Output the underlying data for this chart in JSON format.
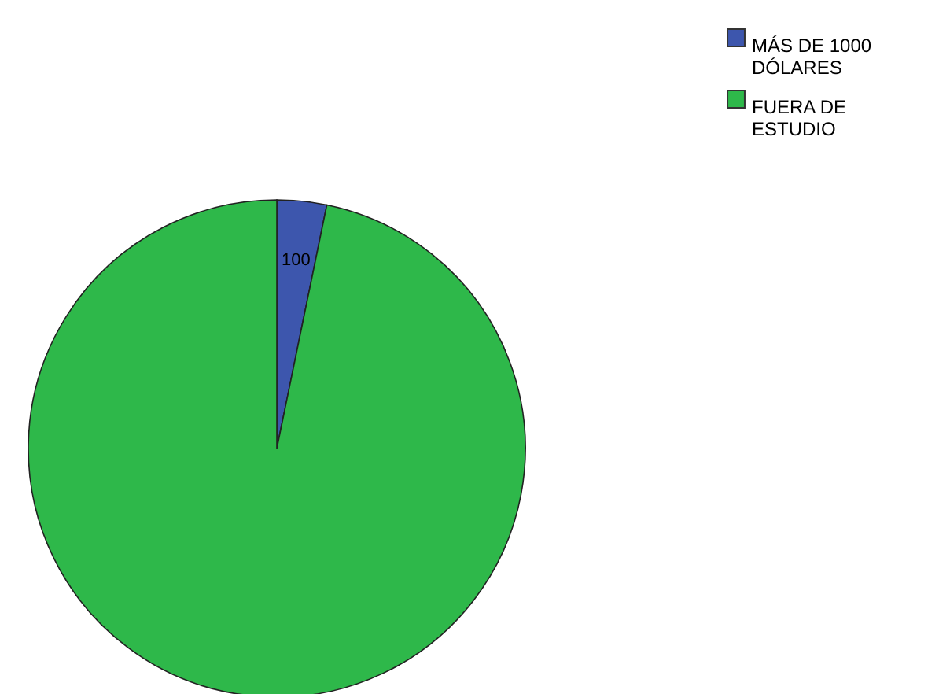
{
  "chart_data": {
    "type": "pie",
    "categories": [
      "MÁS DE 1000 DÓLARES",
      "FUERA DE ESTUDIO"
    ],
    "values": [
      100,
      3000
    ],
    "value_labels": [
      "100",
      null
    ],
    "colors": [
      "#3d56ad",
      "#2eb84a"
    ],
    "legend": "top right"
  }
}
